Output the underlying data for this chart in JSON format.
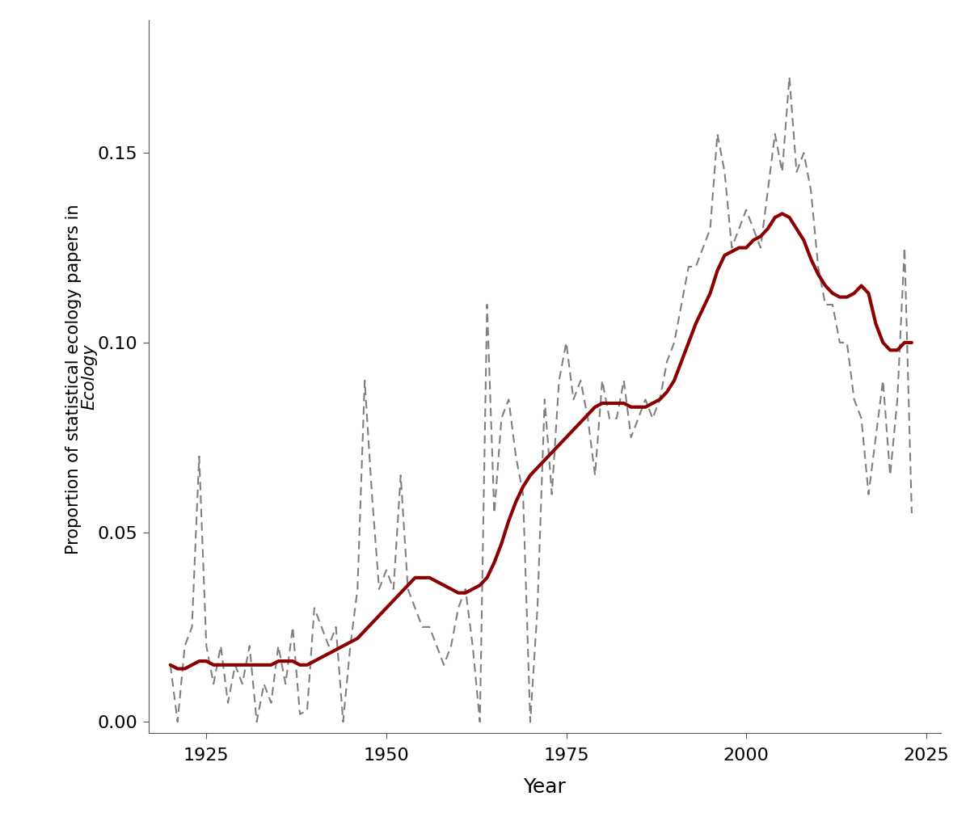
{
  "raw_years": [
    1920,
    1921,
    1922,
    1923,
    1924,
    1925,
    1926,
    1927,
    1928,
    1929,
    1930,
    1931,
    1932,
    1933,
    1934,
    1935,
    1936,
    1937,
    1938,
    1939,
    1940,
    1941,
    1942,
    1943,
    1944,
    1945,
    1946,
    1947,
    1948,
    1949,
    1950,
    1951,
    1952,
    1953,
    1954,
    1955,
    1956,
    1957,
    1958,
    1959,
    1960,
    1961,
    1962,
    1963,
    1964,
    1965,
    1966,
    1967,
    1968,
    1969,
    1970,
    1971,
    1972,
    1973,
    1974,
    1975,
    1976,
    1977,
    1978,
    1979,
    1980,
    1981,
    1982,
    1983,
    1984,
    1985,
    1986,
    1987,
    1988,
    1989,
    1990,
    1991,
    1992,
    1993,
    1994,
    1995,
    1996,
    1997,
    1998,
    1999,
    2000,
    2001,
    2002,
    2003,
    2004,
    2005,
    2006,
    2007,
    2008,
    2009,
    2010,
    2011,
    2012,
    2013,
    2014,
    2015,
    2016,
    2017,
    2018,
    2019,
    2020,
    2021,
    2022,
    2023
  ],
  "raw_values": [
    0.015,
    0.0,
    0.02,
    0.025,
    0.07,
    0.02,
    0.01,
    0.02,
    0.005,
    0.015,
    0.01,
    0.02,
    0.0,
    0.01,
    0.005,
    0.02,
    0.01,
    0.025,
    0.002,
    0.003,
    0.03,
    0.025,
    0.02,
    0.025,
    0.0,
    0.02,
    0.035,
    0.09,
    0.06,
    0.035,
    0.04,
    0.035,
    0.065,
    0.035,
    0.03,
    0.025,
    0.025,
    0.02,
    0.015,
    0.02,
    0.03,
    0.035,
    0.02,
    0.0,
    0.11,
    0.055,
    0.08,
    0.085,
    0.07,
    0.06,
    0.0,
    0.03,
    0.085,
    0.06,
    0.09,
    0.1,
    0.085,
    0.09,
    0.08,
    0.065,
    0.09,
    0.08,
    0.08,
    0.09,
    0.075,
    0.08,
    0.085,
    0.08,
    0.085,
    0.095,
    0.1,
    0.11,
    0.12,
    0.12,
    0.125,
    0.13,
    0.155,
    0.145,
    0.125,
    0.13,
    0.135,
    0.13,
    0.125,
    0.14,
    0.155,
    0.145,
    0.17,
    0.145,
    0.15,
    0.14,
    0.12,
    0.11,
    0.11,
    0.1,
    0.1,
    0.085,
    0.08,
    0.06,
    0.075,
    0.09,
    0.065,
    0.085,
    0.125,
    0.055
  ],
  "smooth_years": [
    1920,
    1921,
    1922,
    1923,
    1924,
    1925,
    1926,
    1927,
    1928,
    1929,
    1930,
    1931,
    1932,
    1933,
    1934,
    1935,
    1936,
    1937,
    1938,
    1939,
    1940,
    1941,
    1942,
    1943,
    1944,
    1945,
    1946,
    1947,
    1948,
    1949,
    1950,
    1951,
    1952,
    1953,
    1954,
    1955,
    1956,
    1957,
    1958,
    1959,
    1960,
    1961,
    1962,
    1963,
    1964,
    1965,
    1966,
    1967,
    1968,
    1969,
    1970,
    1971,
    1972,
    1973,
    1974,
    1975,
    1976,
    1977,
    1978,
    1979,
    1980,
    1981,
    1982,
    1983,
    1984,
    1985,
    1986,
    1987,
    1988,
    1989,
    1990,
    1991,
    1992,
    1993,
    1994,
    1995,
    1996,
    1997,
    1998,
    1999,
    2000,
    2001,
    2002,
    2003,
    2004,
    2005,
    2006,
    2007,
    2008,
    2009,
    2010,
    2011,
    2012,
    2013,
    2014,
    2015,
    2016,
    2017,
    2018,
    2019,
    2020,
    2021,
    2022,
    2023
  ],
  "smooth_values": [
    0.015,
    0.014,
    0.014,
    0.015,
    0.016,
    0.016,
    0.015,
    0.015,
    0.015,
    0.015,
    0.015,
    0.015,
    0.015,
    0.015,
    0.015,
    0.016,
    0.016,
    0.016,
    0.015,
    0.015,
    0.016,
    0.017,
    0.018,
    0.019,
    0.02,
    0.021,
    0.022,
    0.024,
    0.026,
    0.028,
    0.03,
    0.032,
    0.034,
    0.036,
    0.038,
    0.038,
    0.038,
    0.037,
    0.036,
    0.035,
    0.034,
    0.034,
    0.035,
    0.036,
    0.038,
    0.042,
    0.047,
    0.053,
    0.058,
    0.062,
    0.065,
    0.067,
    0.069,
    0.071,
    0.073,
    0.075,
    0.077,
    0.079,
    0.081,
    0.083,
    0.084,
    0.084,
    0.084,
    0.084,
    0.083,
    0.083,
    0.083,
    0.084,
    0.085,
    0.087,
    0.09,
    0.095,
    0.1,
    0.105,
    0.109,
    0.113,
    0.119,
    0.123,
    0.124,
    0.125,
    0.125,
    0.127,
    0.128,
    0.13,
    0.133,
    0.134,
    0.133,
    0.13,
    0.127,
    0.122,
    0.118,
    0.115,
    0.113,
    0.112,
    0.112,
    0.113,
    0.115,
    0.113,
    0.105,
    0.1,
    0.098,
    0.098,
    0.1,
    0.1
  ],
  "raw_color": "#7f7f7f",
  "smooth_color": "#8B0000",
  "raw_linewidth": 1.5,
  "smooth_linewidth": 3.0,
  "xlabel": "Year",
  "ylabel_normal": "Proportion of statistical ecology papers in ",
  "ylabel_italic": "Ecology",
  "xlim": [
    1917,
    2027
  ],
  "ylim": [
    -0.003,
    0.185
  ],
  "xticks": [
    1925,
    1950,
    1975,
    2000,
    2025
  ],
  "yticks": [
    0.0,
    0.05,
    0.1,
    0.15
  ],
  "background_color": "#ffffff",
  "xlabel_fontsize": 18,
  "ylabel_fontsize": 15,
  "tick_fontsize": 16
}
